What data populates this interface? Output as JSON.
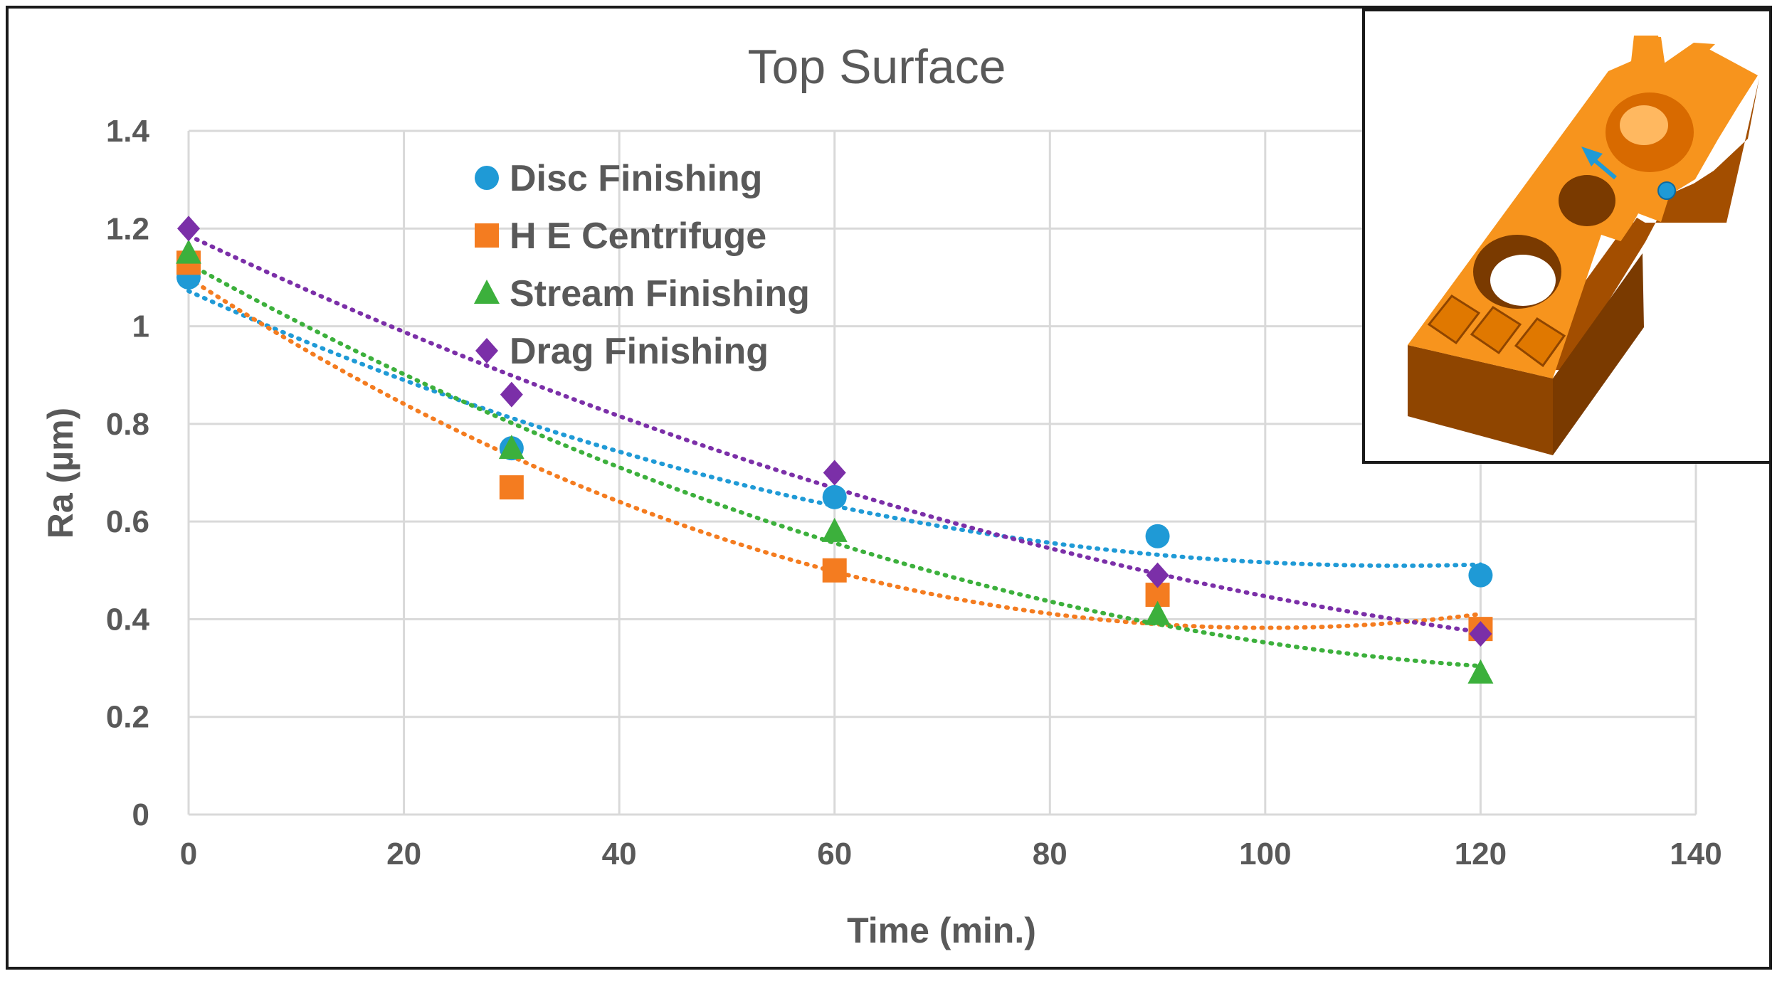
{
  "chart_data": {
    "type": "scatter",
    "title": "Top Surface",
    "xlabel": "Time (min.)",
    "ylabel": "Ra (µm)",
    "xlim": [
      0,
      140
    ],
    "ylim": [
      0,
      1.4
    ],
    "x_ticks": [
      "0",
      "20",
      "40",
      "60",
      "80",
      "100",
      "120",
      "140"
    ],
    "y_ticks": [
      "0",
      "0.2",
      "0.4",
      "0.6",
      "0.8",
      "1",
      "1.2",
      "1.4"
    ],
    "grid": true,
    "legend_position": "top-left",
    "trendline": "dotted polynomial",
    "x": [
      0,
      30,
      60,
      90,
      120
    ],
    "series": [
      {
        "name": "Disc Finishing",
        "marker": "circle",
        "color": "#1f9ad6",
        "values": [
          1.1,
          0.75,
          0.65,
          0.57,
          0.49
        ]
      },
      {
        "name": "H E Centrifuge",
        "marker": "square",
        "color": "#f47c20",
        "values": [
          1.13,
          0.67,
          0.5,
          0.45,
          0.38
        ]
      },
      {
        "name": "Stream Finishing",
        "marker": "triangle",
        "color": "#3cb03c",
        "values": [
          1.15,
          0.75,
          0.58,
          0.41,
          0.29
        ]
      },
      {
        "name": "Drag Finishing",
        "marker": "diamond",
        "color": "#7b2fa8",
        "values": [
          1.2,
          0.86,
          0.7,
          0.49,
          0.37
        ]
      }
    ]
  },
  "inset": {
    "description_icon": "orange-part-render",
    "part_color": "#f7941d",
    "arrow_color": "#1f9ad6"
  }
}
